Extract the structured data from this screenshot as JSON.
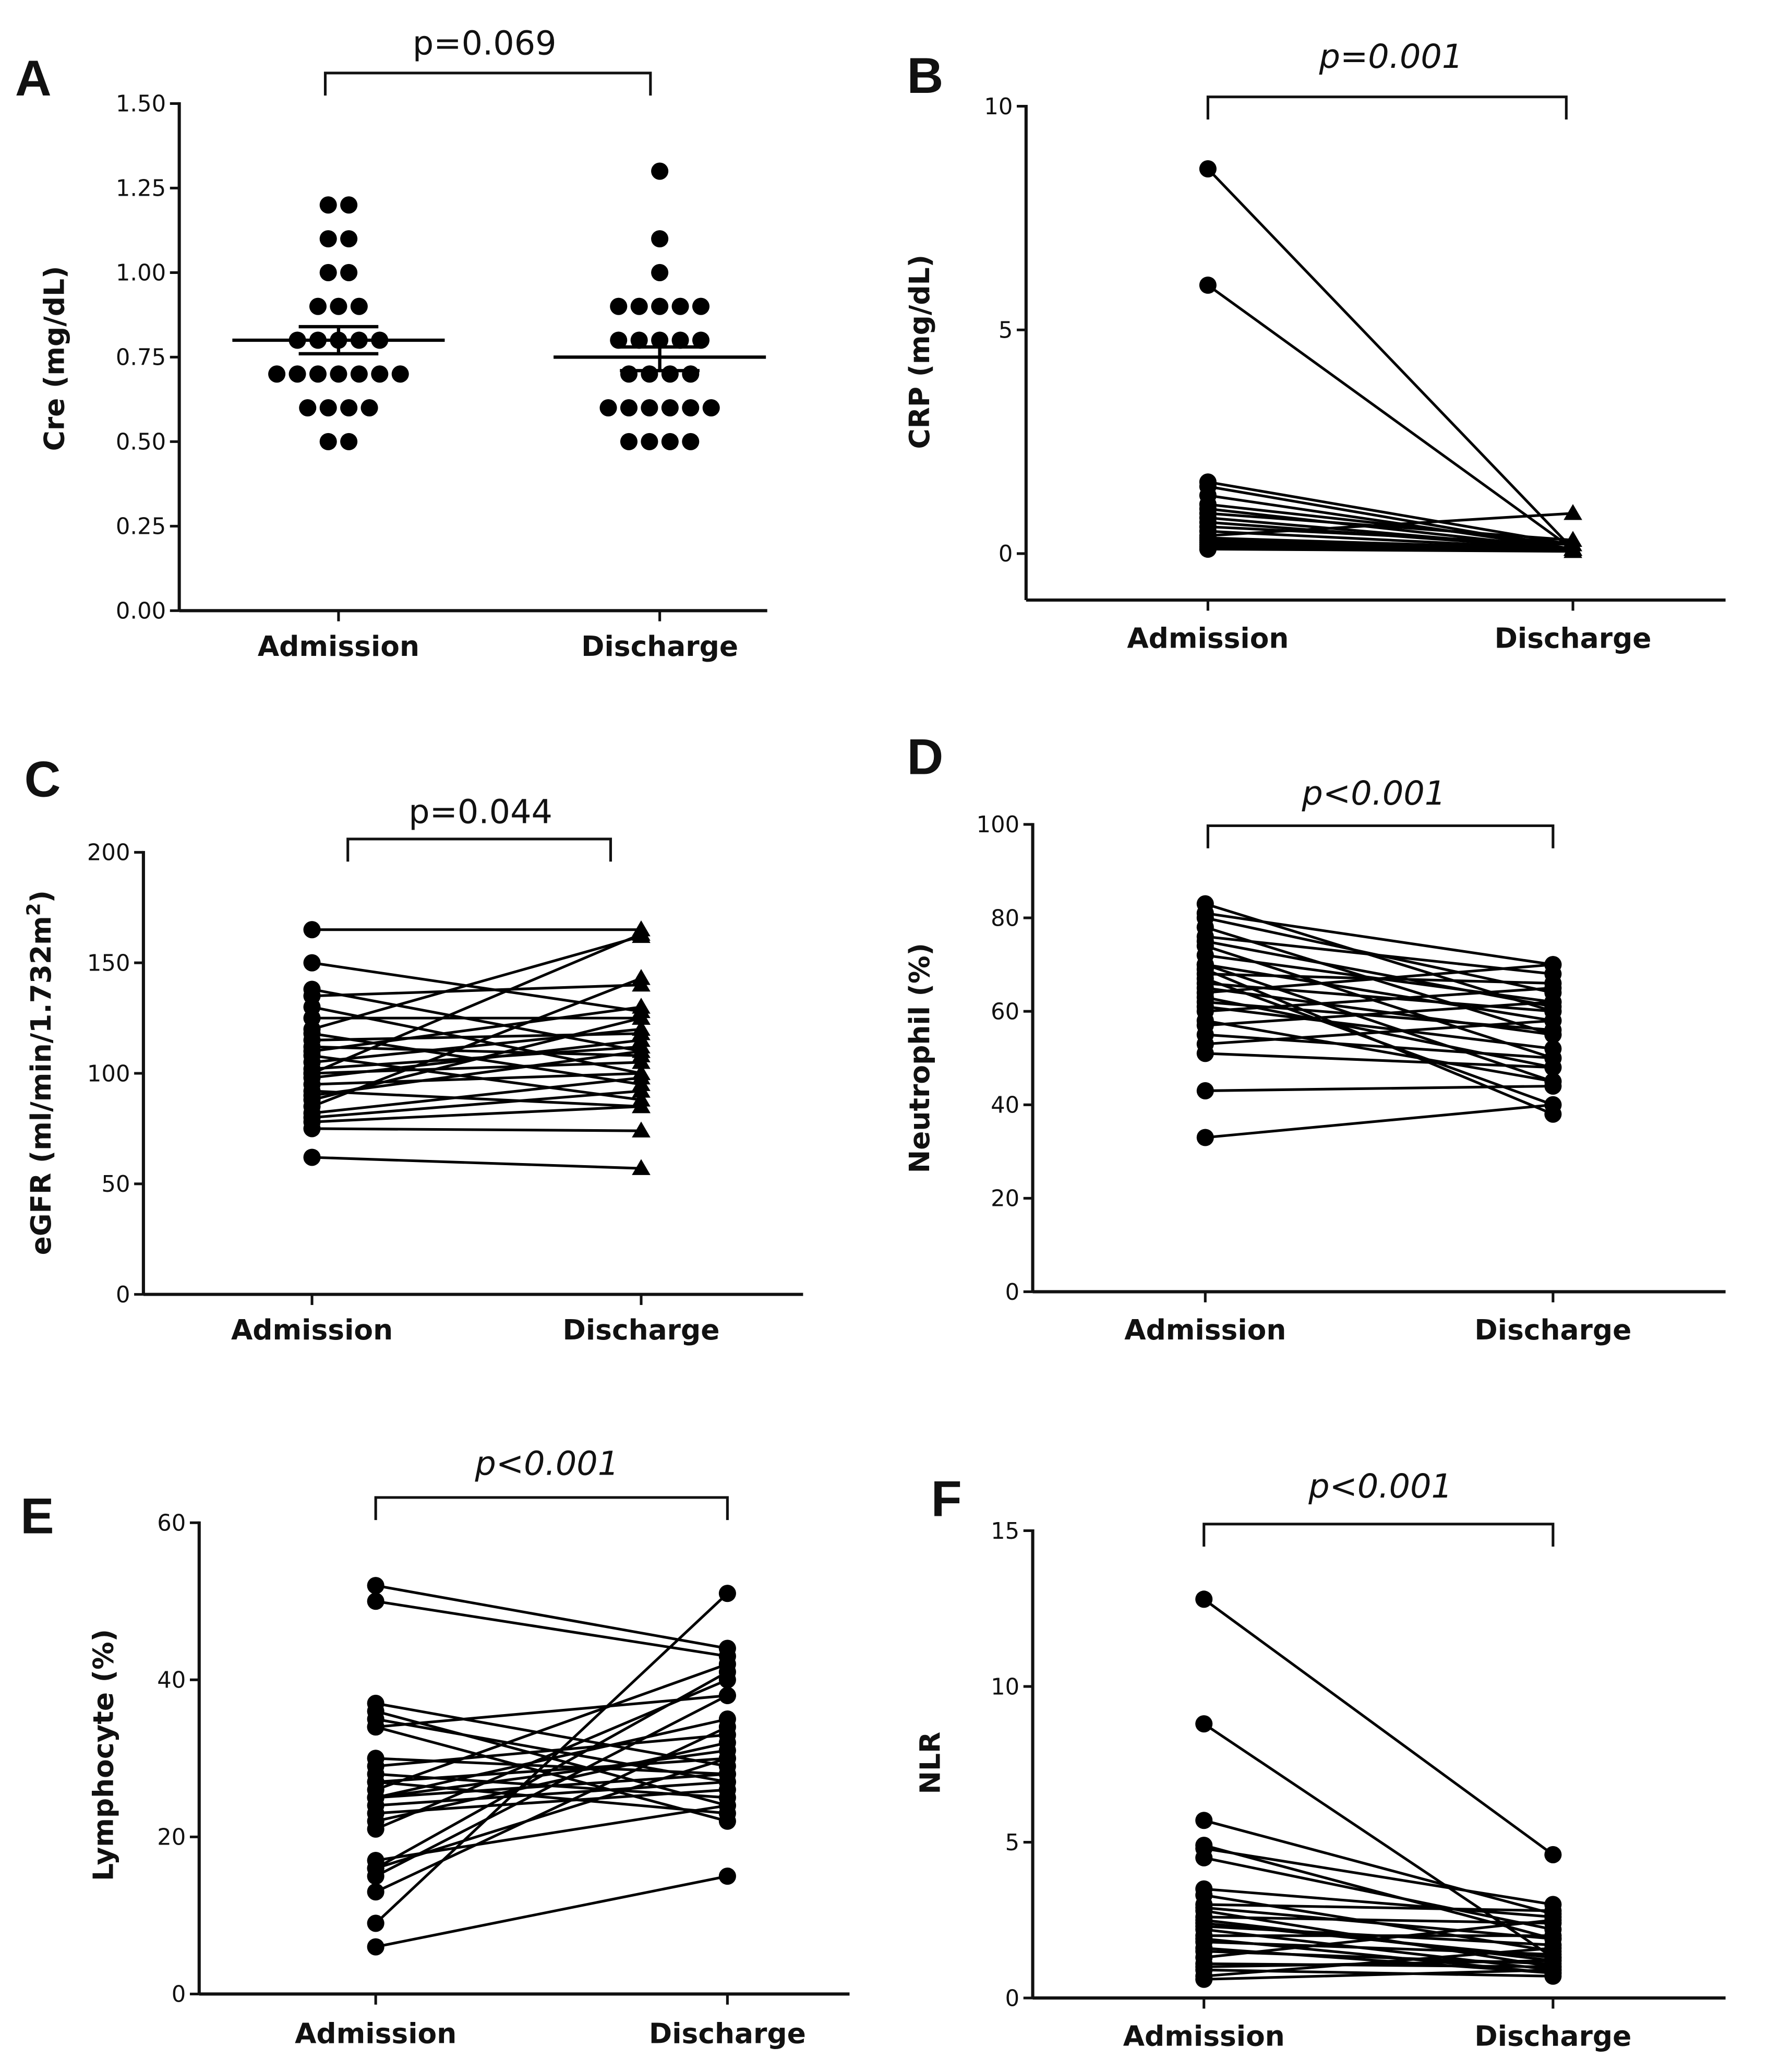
{
  "chart_data": [
    {
      "panel": "A",
      "type": "scatter",
      "ylabel": "Cre (mg/dL)",
      "ylim": [
        0,
        1.5
      ],
      "yticks": [
        "0.00",
        "0.25",
        "0.50",
        "0.75",
        "1.00",
        "1.25",
        "1.50"
      ],
      "categories": [
        "Admission",
        "Discharge"
      ],
      "p_value": "p=0.069",
      "p_italic_part": "p",
      "p_rest": "=0.069",
      "groups": [
        {
          "name": "Admission",
          "values": [
            1.2,
            1.2,
            1.1,
            1.1,
            1.0,
            1.0,
            0.9,
            0.9,
            0.9,
            0.8,
            0.8,
            0.8,
            0.8,
            0.8,
            0.7,
            0.7,
            0.7,
            0.7,
            0.7,
            0.7,
            0.7,
            0.6,
            0.6,
            0.6,
            0.6,
            0.5,
            0.5
          ],
          "mean": 0.8,
          "sem": [
            0.76,
            0.84
          ]
        },
        {
          "name": "Discharge",
          "values": [
            1.3,
            1.1,
            1.0,
            0.9,
            0.9,
            0.9,
            0.9,
            0.9,
            0.8,
            0.8,
            0.8,
            0.8,
            0.8,
            0.7,
            0.7,
            0.7,
            0.7,
            0.6,
            0.6,
            0.6,
            0.6,
            0.6,
            0.6,
            0.5,
            0.5,
            0.5,
            0.5
          ],
          "mean": 0.75,
          "sem": [
            0.71,
            0.78
          ]
        }
      ]
    },
    {
      "panel": "B",
      "type": "line",
      "ylabel": "CRP (mg/dL)",
      "ylim": [
        -1,
        10
      ],
      "yticks": [
        "0",
        "5",
        "10"
      ],
      "categories": [
        "Admission",
        "Discharge"
      ],
      "p_value": "p=0.001",
      "pairs": [
        [
          8.6,
          0.1
        ],
        [
          6.0,
          0.1
        ],
        [
          1.6,
          0.2
        ],
        [
          1.5,
          0.1
        ],
        [
          1.3,
          0.1
        ],
        [
          1.1,
          0.2
        ],
        [
          1.0,
          0.1
        ],
        [
          0.9,
          0.3
        ],
        [
          0.8,
          0.1
        ],
        [
          0.7,
          0.1
        ],
        [
          0.6,
          0.2
        ],
        [
          0.5,
          0.1
        ],
        [
          0.4,
          0.9
        ],
        [
          0.35,
          0.1
        ],
        [
          0.3,
          0.1
        ],
        [
          0.25,
          0.1
        ],
        [
          0.2,
          0.1
        ],
        [
          0.15,
          0.1
        ],
        [
          0.1,
          0.1
        ],
        [
          0.1,
          0.05
        ]
      ],
      "discharge_marker": "triangle"
    },
    {
      "panel": "C",
      "type": "line",
      "ylabel": "eGFR (ml/min/1.732m",
      "ylabel_sup": "2",
      "ylabel_end": ")",
      "ylim": [
        0,
        200
      ],
      "yticks": [
        "0",
        "50",
        "100",
        "150",
        "200"
      ],
      "categories": [
        "Admission",
        "Discharge"
      ],
      "p_value": "p=0.044",
      "p_italic_part": "p",
      "p_rest": "=0.044",
      "pairs": [
        [
          165,
          165
        ],
        [
          150,
          128
        ],
        [
          138,
          110
        ],
        [
          135,
          140
        ],
        [
          130,
          100
        ],
        [
          125,
          125
        ],
        [
          120,
          162
        ],
        [
          118,
          95
        ],
        [
          115,
          118
        ],
        [
          112,
          108
        ],
        [
          110,
          130
        ],
        [
          108,
          88
        ],
        [
          105,
          120
        ],
        [
          102,
          112
        ],
        [
          100,
          105
        ],
        [
          98,
          115
        ],
        [
          95,
          100
        ],
        [
          92,
          85
        ],
        [
          90,
          110
        ],
        [
          88,
          125
        ],
        [
          85,
          143
        ],
        [
          82,
          98
        ],
        [
          80,
          92
        ],
        [
          78,
          85
        ],
        [
          75,
          74
        ],
        [
          62,
          57
        ],
        [
          100,
          163
        ]
      ],
      "discharge_marker": "triangle"
    },
    {
      "panel": "D",
      "type": "line",
      "ylabel": "Neutrophil (%)",
      "ylim": [
        0,
        100
      ],
      "yticks": [
        "0",
        "20",
        "40",
        "60",
        "80",
        "100"
      ],
      "categories": [
        "Admission",
        "Discharge"
      ],
      "p_value": "p<0.001",
      "pairs": [
        [
          83,
          60
        ],
        [
          81,
          70
        ],
        [
          80,
          64
        ],
        [
          78,
          55
        ],
        [
          76,
          68
        ],
        [
          74,
          50
        ],
        [
          72,
          62
        ],
        [
          70,
          45
        ],
        [
          70,
          58
        ],
        [
          68,
          66
        ],
        [
          67,
          40
        ],
        [
          66,
          60
        ],
        [
          65,
          55
        ],
        [
          64,
          70
        ],
        [
          63,
          48
        ],
        [
          62,
          56
        ],
        [
          61,
          52
        ],
        [
          60,
          65
        ],
        [
          58,
          45
        ],
        [
          57,
          62
        ],
        [
          55,
          50
        ],
        [
          53,
          58
        ],
        [
          51,
          48
        ],
        [
          43,
          44
        ],
        [
          33,
          40
        ],
        [
          69,
          38
        ],
        [
          75,
          61
        ]
      ],
      "discharge_marker": "circle"
    },
    {
      "panel": "E",
      "type": "line",
      "ylabel": "Lymphocyte (%)",
      "ylim": [
        0,
        60
      ],
      "yticks": [
        "0",
        "20",
        "40",
        "60"
      ],
      "categories": [
        "Admission",
        "Discharge"
      ],
      "p_value": "p<0.001",
      "pairs": [
        [
          52,
          44
        ],
        [
          50,
          43
        ],
        [
          37,
          29
        ],
        [
          36,
          24
        ],
        [
          34,
          38
        ],
        [
          34,
          22
        ],
        [
          29,
          33
        ],
        [
          28,
          25
        ],
        [
          27,
          30
        ],
        [
          26,
          42
        ],
        [
          25,
          28
        ],
        [
          25,
          35
        ],
        [
          24,
          27
        ],
        [
          23,
          26
        ],
        [
          22,
          32
        ],
        [
          16,
          41
        ],
        [
          16,
          30
        ],
        [
          15,
          38
        ],
        [
          13,
          34
        ],
        [
          9,
          51
        ],
        [
          6,
          15
        ],
        [
          30,
          28
        ],
        [
          27,
          23
        ],
        [
          35,
          27
        ],
        [
          17,
          24
        ],
        [
          25,
          31
        ],
        [
          21,
          40
        ]
      ],
      "discharge_marker": "circle"
    },
    {
      "panel": "F",
      "type": "line",
      "ylabel": "NLR",
      "ylim": [
        0,
        15
      ],
      "yticks": [
        "0",
        "5",
        "10",
        "15"
      ],
      "categories": [
        "Admission",
        "Discharge"
      ],
      "p_value": "p<0.001",
      "pairs": [
        [
          12.8,
          4.6
        ],
        [
          8.8,
          1.3
        ],
        [
          5.7,
          2.7
        ],
        [
          4.9,
          1.9
        ],
        [
          4.8,
          3.0
        ],
        [
          4.5,
          2.2
        ],
        [
          3.3,
          1.5
        ],
        [
          3.0,
          2.8
        ],
        [
          2.8,
          1.0
        ],
        [
          2.6,
          2.4
        ],
        [
          2.5,
          1.2
        ],
        [
          2.3,
          1.7
        ],
        [
          2.2,
          0.9
        ],
        [
          2.0,
          2.0
        ],
        [
          1.8,
          1.4
        ],
        [
          1.6,
          0.8
        ],
        [
          1.5,
          1.1
        ],
        [
          1.3,
          2.5
        ],
        [
          1.1,
          1.0
        ],
        [
          0.9,
          0.7
        ],
        [
          0.7,
          1.6
        ],
        [
          2.9,
          1.9
        ],
        [
          3.5,
          2.6
        ],
        [
          1.9,
          0.8
        ],
        [
          2.4,
          1.3
        ],
        [
          1.0,
          1.2
        ],
        [
          0.6,
          0.9
        ]
      ],
      "discharge_marker": "circle"
    }
  ]
}
